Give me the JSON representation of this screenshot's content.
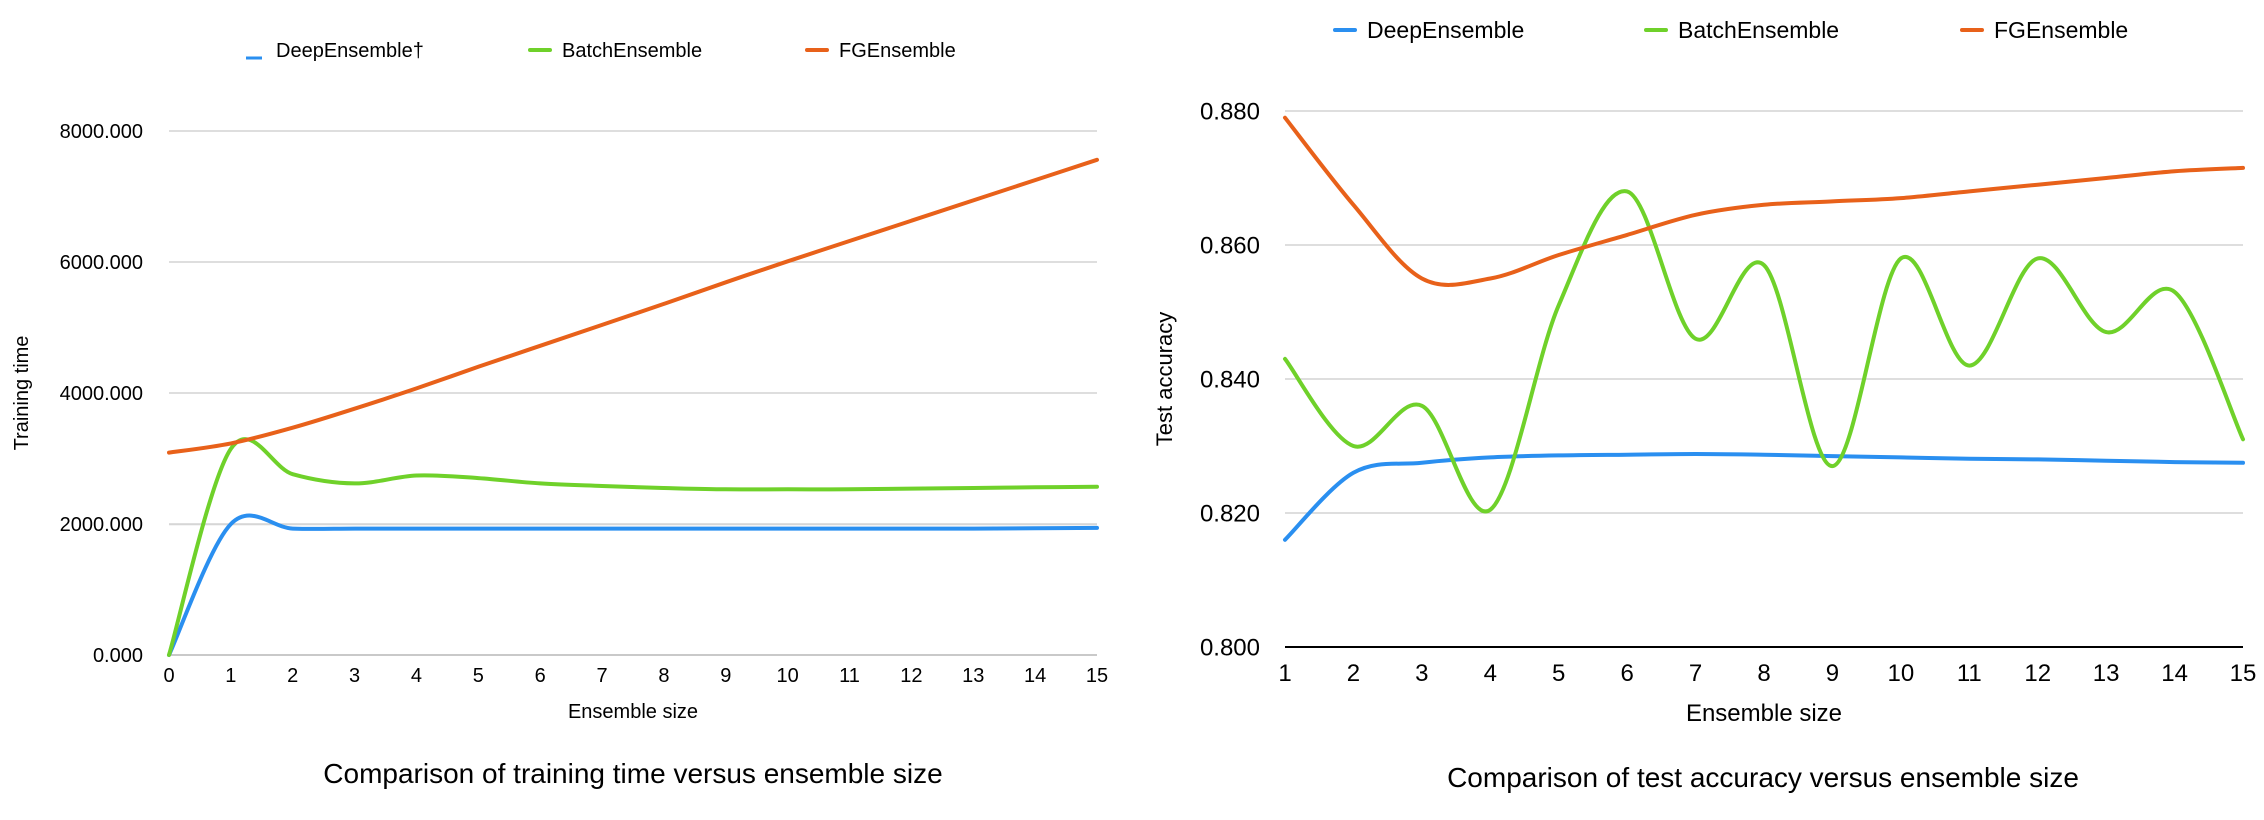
{
  "chart_data": [
    {
      "type": "line",
      "caption": "Comparison of training time versus ensemble size",
      "xlabel": "Ensemble size",
      "ylabel": "Training time",
      "x": [
        0,
        1,
        2,
        3,
        4,
        5,
        6,
        7,
        8,
        9,
        10,
        11,
        12,
        13,
        14,
        15
      ],
      "xlim": [
        0,
        15
      ],
      "ylim": [
        0,
        8000
      ],
      "yticks": [
        0,
        2000,
        4000,
        6000,
        8000
      ],
      "ytick_labels": [
        "0.000",
        "2000.000",
        "4000.000",
        "6000.000",
        "8000.000"
      ],
      "grid": true,
      "legend": "top",
      "series": [
        {
          "name": "DeepEnsemble†",
          "color": "#2a8ff0",
          "legend_marker": "short",
          "values": [
            0,
            2000,
            1930,
            1930,
            1930,
            1930,
            1930,
            1930,
            1930,
            1930,
            1930,
            1930,
            1930,
            1930,
            1935,
            1940
          ]
        },
        {
          "name": "BatchEnsemble",
          "color": "#6fd12a",
          "legend_marker": "line",
          "values": [
            0,
            3150,
            2760,
            2620,
            2740,
            2700,
            2620,
            2580,
            2550,
            2530,
            2530,
            2530,
            2540,
            2550,
            2560,
            2570
          ]
        },
        {
          "name": "FGEnsemble",
          "color": "#e8611a",
          "legend_marker": "line",
          "values": [
            3090,
            3230,
            3470,
            3760,
            4070,
            4400,
            4720,
            5040,
            5360,
            5690,
            6010,
            6320,
            6630,
            6940,
            7250,
            7560
          ]
        }
      ]
    },
    {
      "type": "line",
      "caption": "Comparison of test accuracy versus ensemble size",
      "xlabel": "Ensemble size",
      "ylabel": "Test accuracy",
      "x": [
        1,
        2,
        3,
        4,
        5,
        6,
        7,
        8,
        9,
        10,
        11,
        12,
        13,
        14,
        15
      ],
      "xlim": [
        1,
        15
      ],
      "ylim": [
        0.8,
        0.88
      ],
      "yticks": [
        0.8,
        0.82,
        0.84,
        0.86,
        0.88
      ],
      "ytick_labels": [
        "0.800",
        "0.820",
        "0.840",
        "0.860",
        "0.880"
      ],
      "grid": true,
      "legend": "top",
      "series": [
        {
          "name": "DeepEnsemble",
          "color": "#2a8ff0",
          "legend_marker": "line",
          "values": [
            0.816,
            0.826,
            0.8275,
            0.8283,
            0.8286,
            0.8287,
            0.8288,
            0.8287,
            0.8285,
            0.8283,
            0.8281,
            0.828,
            0.8278,
            0.8276,
            0.8275
          ]
        },
        {
          "name": "BatchEnsemble",
          "color": "#6fd12a",
          "legend_marker": "line",
          "values": [
            0.843,
            0.83,
            0.836,
            0.8205,
            0.851,
            0.868,
            0.846,
            0.857,
            0.827,
            0.858,
            0.842,
            0.858,
            0.847,
            0.853,
            0.831
          ]
        },
        {
          "name": "FGEnsemble",
          "color": "#e8611a",
          "legend_marker": "line",
          "values": [
            0.879,
            0.866,
            0.855,
            0.855,
            0.8585,
            0.8615,
            0.8645,
            0.866,
            0.8665,
            0.867,
            0.868,
            0.869,
            0.87,
            0.871,
            0.8715
          ]
        }
      ]
    }
  ]
}
